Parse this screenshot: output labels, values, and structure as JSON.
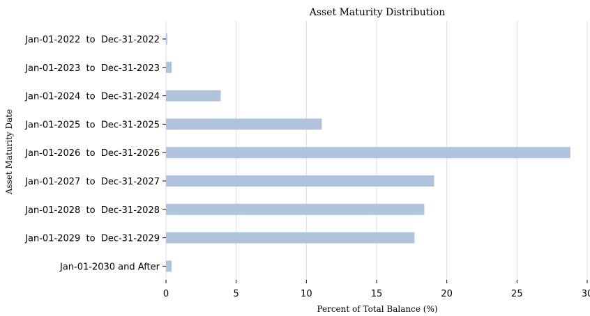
{
  "chart_data": {
    "type": "bar",
    "orientation": "horizontal",
    "title": "Asset Maturity Distribution",
    "xlabel": "Percent of Total Balance (%)",
    "ylabel": "Asset Maturity Date",
    "categories": [
      "Jan-01-2022  to  Dec-31-2022",
      "Jan-01-2023  to  Dec-31-2023",
      "Jan-01-2024  to  Dec-31-2024",
      "Jan-01-2025  to  Dec-31-2025",
      "Jan-01-2026  to  Dec-31-2026",
      "Jan-01-2027  to  Dec-31-2027",
      "Jan-01-2028  to  Dec-31-2028",
      "Jan-01-2029  to  Dec-31-2029",
      "Jan-01-2030 and After"
    ],
    "values": [
      0.1,
      0.4,
      3.9,
      11.1,
      28.8,
      19.1,
      18.4,
      17.7,
      0.4
    ],
    "xlim": [
      0,
      30
    ],
    "xticks": [
      "0",
      "5",
      "10",
      "15",
      "20",
      "25",
      "30"
    ],
    "grid": "vertical",
    "bar_color": "#b0c4de"
  }
}
